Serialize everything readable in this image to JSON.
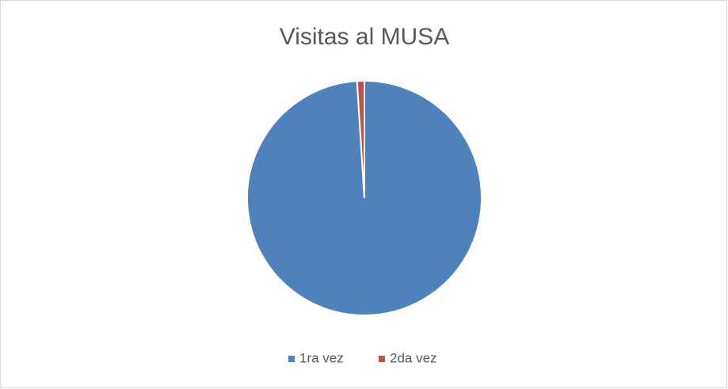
{
  "chart_data": {
    "type": "pie",
    "title": "Visitas al MUSA",
    "categories": [
      "1ra vez",
      "2da vez"
    ],
    "values": [
      99,
      1
    ],
    "colors": [
      "#4f81bd",
      "#c0504d"
    ],
    "legend": "bottom"
  }
}
